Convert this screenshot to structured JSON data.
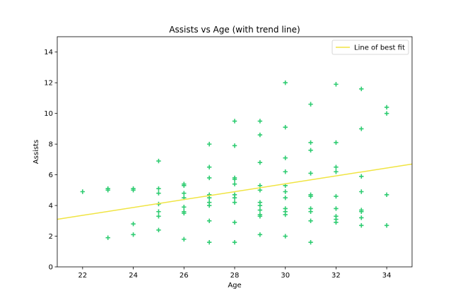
{
  "chart_data": {
    "type": "scatter",
    "title": "Assists vs Age (with trend line)",
    "xlabel": "Age",
    "ylabel": "Assists",
    "xlim": [
      21,
      35
    ],
    "ylim": [
      0,
      15
    ],
    "xticks": [
      22,
      24,
      26,
      28,
      30,
      32,
      34
    ],
    "yticks": [
      0,
      2,
      4,
      6,
      8,
      10,
      12,
      14
    ],
    "grid": false,
    "legend_position": "upper right",
    "marker": "plus",
    "point_color": "#2ecc71",
    "trend_color": "#f0e442",
    "points": [
      [
        22,
        4.9
      ],
      [
        23,
        5.0
      ],
      [
        23,
        5.1
      ],
      [
        23,
        1.9
      ],
      [
        24,
        5.0
      ],
      [
        24,
        5.1
      ],
      [
        24,
        2.8
      ],
      [
        24,
        2.1
      ],
      [
        25,
        6.9
      ],
      [
        25,
        5.1
      ],
      [
        25,
        4.8
      ],
      [
        25,
        4.1
      ],
      [
        25,
        3.6
      ],
      [
        25,
        3.3
      ],
      [
        25,
        2.4
      ],
      [
        26,
        5.4
      ],
      [
        26,
        5.3
      ],
      [
        26,
        4.8
      ],
      [
        26,
        4.5
      ],
      [
        26,
        3.9
      ],
      [
        26,
        3.6
      ],
      [
        26,
        3.5
      ],
      [
        26,
        1.8
      ],
      [
        27,
        8.0
      ],
      [
        27,
        6.5
      ],
      [
        27,
        5.8
      ],
      [
        27,
        4.7
      ],
      [
        27,
        4.5
      ],
      [
        27,
        4.2
      ],
      [
        27,
        4.0
      ],
      [
        27,
        3.0
      ],
      [
        27,
        1.6
      ],
      [
        28,
        9.5
      ],
      [
        28,
        7.9
      ],
      [
        28,
        5.8
      ],
      [
        28,
        5.7
      ],
      [
        28,
        5.4
      ],
      [
        28,
        4.7
      ],
      [
        28,
        4.5
      ],
      [
        28,
        4.2
      ],
      [
        28,
        2.9
      ],
      [
        28,
        1.6
      ],
      [
        29,
        9.5
      ],
      [
        29,
        8.6
      ],
      [
        29,
        6.8
      ],
      [
        29,
        5.3
      ],
      [
        29,
        5.0
      ],
      [
        29,
        4.2
      ],
      [
        29,
        4.0
      ],
      [
        29,
        3.7
      ],
      [
        29,
        3.4
      ],
      [
        29,
        3.3
      ],
      [
        29,
        2.1
      ],
      [
        30,
        12.0
      ],
      [
        30,
        9.1
      ],
      [
        30,
        7.1
      ],
      [
        30,
        6.2
      ],
      [
        30,
        5.3
      ],
      [
        30,
        4.9
      ],
      [
        30,
        4.5
      ],
      [
        30,
        3.8
      ],
      [
        30,
        3.6
      ],
      [
        30,
        3.4
      ],
      [
        30,
        2.0
      ],
      [
        31,
        10.6
      ],
      [
        31,
        8.1
      ],
      [
        31,
        7.6
      ],
      [
        31,
        6.1
      ],
      [
        31,
        4.7
      ],
      [
        31,
        4.6
      ],
      [
        31,
        3.8
      ],
      [
        31,
        3.6
      ],
      [
        31,
        3.0
      ],
      [
        31,
        1.6
      ],
      [
        32,
        11.9
      ],
      [
        32,
        8.1
      ],
      [
        32,
        6.5
      ],
      [
        32,
        6.2
      ],
      [
        32,
        4.6
      ],
      [
        32,
        3.8
      ],
      [
        32,
        3.3
      ],
      [
        32,
        3.1
      ],
      [
        32,
        2.9
      ],
      [
        33,
        11.6
      ],
      [
        33,
        9.0
      ],
      [
        33,
        5.9
      ],
      [
        33,
        4.9
      ],
      [
        33,
        3.7
      ],
      [
        33,
        3.6
      ],
      [
        33,
        3.2
      ],
      [
        33,
        2.7
      ],
      [
        34,
        10.4
      ],
      [
        34,
        10.0
      ],
      [
        34,
        4.7
      ],
      [
        34,
        2.7
      ]
    ],
    "trend_line": {
      "name": "Line of best fit",
      "x": [
        21,
        35
      ],
      "y": [
        3.1,
        6.7
      ]
    }
  }
}
